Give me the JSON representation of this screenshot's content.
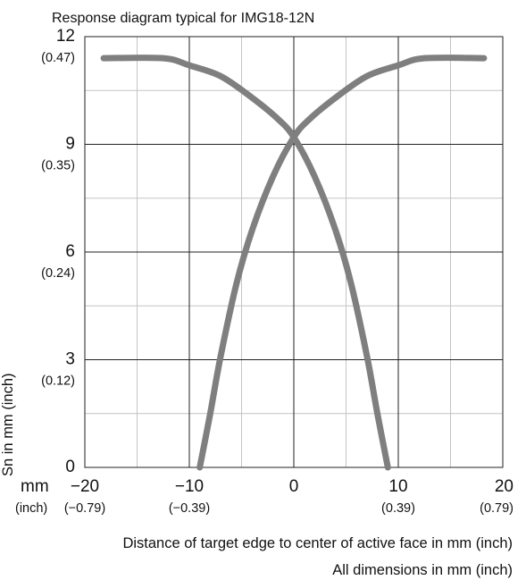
{
  "chart_data": {
    "type": "line",
    "title": "Response diagram typical for IMG18-12N",
    "ylabel": "Sn in mm (inch)",
    "xlabel": "Distance of target edge to center of active face in mm (inch)",
    "note": "All dimensions in mm (inch)",
    "xlim": [
      -20,
      20
    ],
    "ylim": [
      0,
      12
    ],
    "grid": true,
    "x_unit_label_mm": "mm",
    "x_unit_label_inch": "(inch)",
    "x_ticks": [
      {
        "value": -20,
        "label": "−20",
        "sub": "(−0.79)"
      },
      {
        "value": -10,
        "label": "−10",
        "sub": "(−0.39)"
      },
      {
        "value": 0,
        "label": "0",
        "sub": ""
      },
      {
        "value": 10,
        "label": "10",
        "sub": "(0.39)"
      },
      {
        "value": 20,
        "label": "20",
        "sub": "(0.79)"
      }
    ],
    "y_ticks": [
      {
        "value": 0,
        "label": "0",
        "sub": ""
      },
      {
        "value": 3,
        "label": "3",
        "sub": "(0.12)"
      },
      {
        "value": 6,
        "label": "6",
        "sub": "(0.24)"
      },
      {
        "value": 9,
        "label": "9",
        "sub": "(0.35)"
      },
      {
        "value": 12,
        "label": "12",
        "sub": "(0.47)"
      }
    ],
    "series": [
      {
        "color": "#7f7f80",
        "x": [
          -18.2,
          -12.5,
          -10,
          -7,
          -4,
          -1.5,
          0,
          2,
          4,
          5.5,
          7,
          8,
          9
        ],
        "y": [
          11.4,
          11.4,
          11.2,
          10.9,
          10.3,
          9.7,
          9.2,
          8.1,
          6.6,
          5.1,
          3.1,
          1.5,
          0
        ]
      },
      {
        "color": "#7f7f80",
        "x": [
          18.2,
          12.5,
          10,
          7,
          4,
          1.5,
          0,
          -2,
          -4,
          -5.5,
          -7,
          -8,
          -9
        ],
        "y": [
          11.4,
          11.4,
          11.2,
          10.9,
          10.3,
          9.7,
          9.2,
          8.1,
          6.6,
          5.1,
          3.1,
          1.5,
          0
        ]
      }
    ]
  }
}
